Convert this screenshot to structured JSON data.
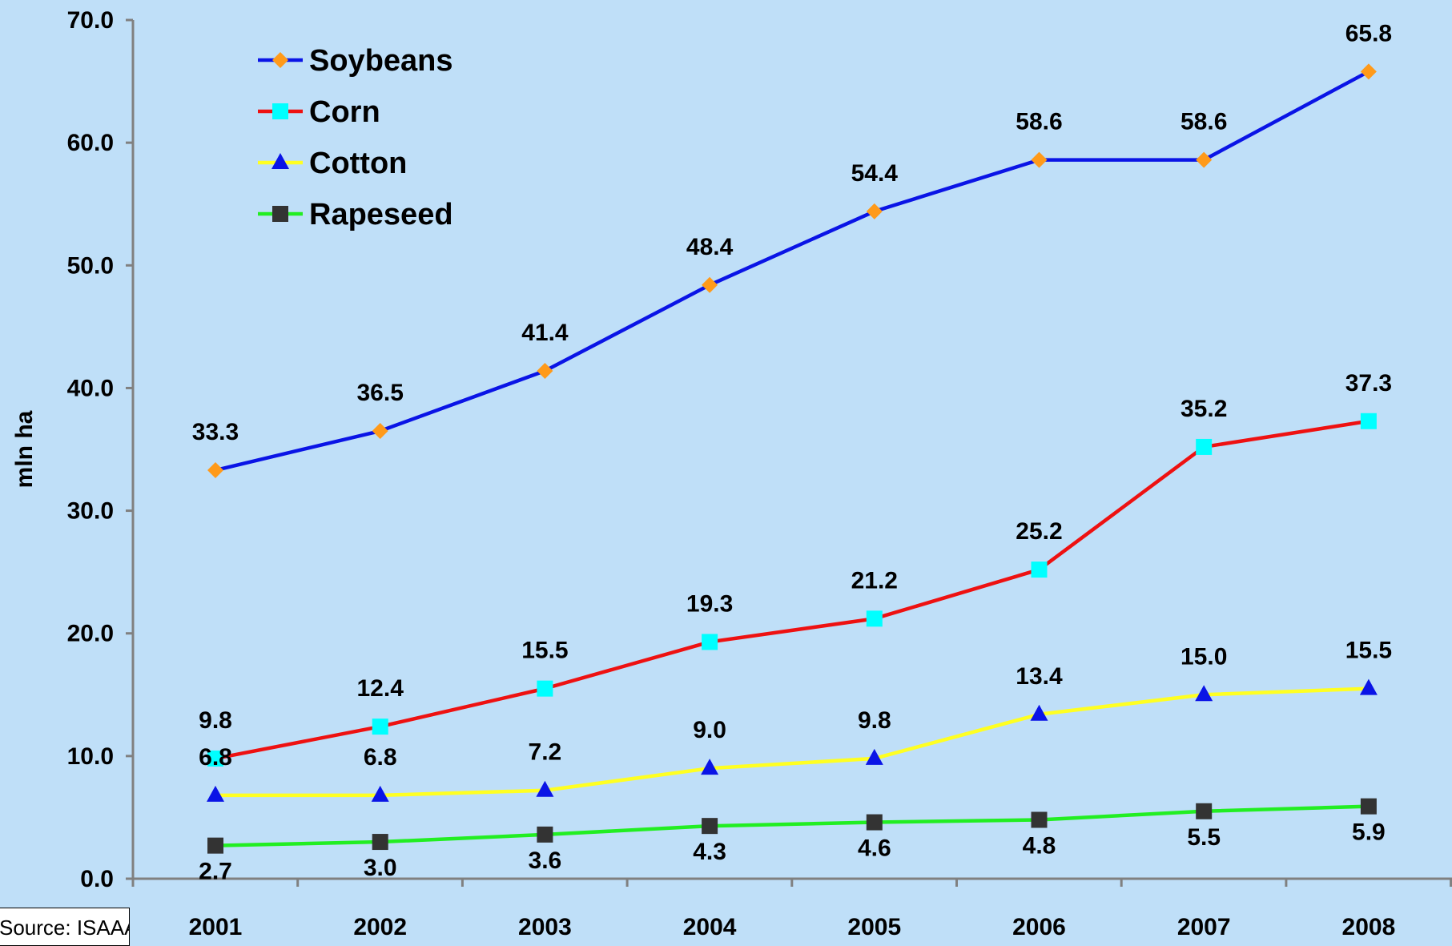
{
  "chart_data": {
    "type": "line",
    "title": "",
    "xlabel": "",
    "ylabel": "mln ha",
    "x": [
      "2001",
      "2002",
      "2003",
      "2004",
      "2005",
      "2006",
      "2007",
      "2008"
    ],
    "ylim": [
      0,
      70
    ],
    "yticks": [
      "0.0",
      "10.0",
      "20.0",
      "30.0",
      "40.0",
      "50.0",
      "60.0",
      "70.0"
    ],
    "grid": false,
    "legend_position": "top-left",
    "series": [
      {
        "name": "Soybeans",
        "line_color": "#0a14e6",
        "marker": "diamond",
        "marker_color": "#ff9a1a",
        "values": [
          33.3,
          36.5,
          41.4,
          48.4,
          54.4,
          58.6,
          58.6,
          65.8
        ],
        "labels": [
          "33.3",
          "36.5",
          "41.4",
          "48.4",
          "54.4",
          "58.6",
          "58.6",
          "65.8"
        ]
      },
      {
        "name": "Corn",
        "line_color": "#ee1111",
        "marker": "square",
        "marker_color": "#00ffff",
        "values": [
          9.8,
          12.4,
          15.5,
          19.3,
          21.2,
          25.2,
          35.2,
          37.3
        ],
        "labels": [
          "9.8",
          "12.4",
          "15.5",
          "19.3",
          "21.2",
          "25.2",
          "35.2",
          "37.3"
        ]
      },
      {
        "name": "Cotton",
        "line_color": "#ffff22",
        "marker": "triangle",
        "marker_color": "#0a14e6",
        "values": [
          6.8,
          6.8,
          7.2,
          9.0,
          9.8,
          13.4,
          15.0,
          15.5
        ],
        "labels": [
          "6.8",
          "6.8",
          "7.2",
          "9.0",
          "9.8",
          "13.4",
          "15.0",
          "15.5"
        ]
      },
      {
        "name": "Rapeseed",
        "line_color": "#22ee22",
        "marker": "square",
        "marker_color": "#333333",
        "values": [
          2.7,
          3.0,
          3.6,
          4.3,
          4.6,
          4.8,
          5.5,
          5.9
        ],
        "labels": [
          "2.7",
          "3.0",
          "3.6",
          "4.3",
          "4.6",
          "4.8",
          "5.5",
          "5.9"
        ]
      }
    ],
    "source_note": "Source: ISAAA"
  }
}
